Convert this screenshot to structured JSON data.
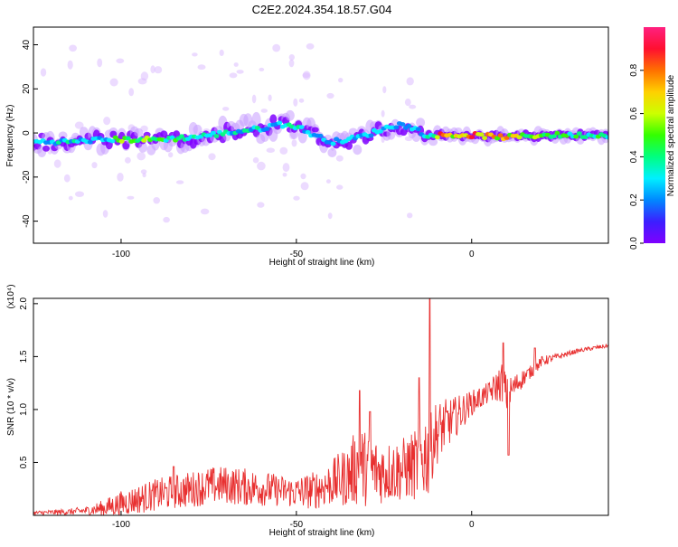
{
  "title": "C2E2.2024.354.18.57.G04",
  "chart_data": [
    {
      "type": "heatmap",
      "name": "spectrogram",
      "xlabel": "Height of straight line (km)",
      "ylabel": "Frequency (Hz)",
      "xlim": [
        -125,
        39
      ],
      "ylim": [
        -50,
        48
      ],
      "xticks": [
        -100,
        -50,
        0
      ],
      "xtick_labels": [
        "-100",
        "-50",
        "0"
      ],
      "yticks": [
        -40,
        -20,
        0,
        20,
        40
      ],
      "ytick_labels": [
        "-40",
        "-20",
        "0",
        "20",
        "40"
      ],
      "colorbar": {
        "label": "Normalized spectral amplitude",
        "range": [
          0,
          1
        ],
        "ticks": [
          0.0,
          0.2,
          0.4,
          0.6,
          0.8
        ],
        "tick_labels": [
          "0.0",
          "0.2",
          "0.4",
          "0.6",
          "0.8"
        ],
        "colormap": [
          "#7f00ff",
          "#3c1fff",
          "#0088ff",
          "#00f0ff",
          "#00ff80",
          "#33ff00",
          "#ccff00",
          "#ffd000",
          "#ff7000",
          "#ff1030",
          "#ff2080"
        ]
      },
      "ridge": {
        "x": [
          -125,
          -115,
          -105,
          -100,
          -90,
          -80,
          -70,
          -60,
          -55,
          -50,
          -45,
          -40,
          -35,
          -30,
          -25,
          -20,
          -15,
          -12,
          -10,
          0,
          10,
          20,
          30,
          39
        ],
        "y": [
          -4,
          -4,
          -3,
          -3,
          -3,
          -2,
          0,
          2,
          4,
          3,
          -1,
          -4,
          -3,
          -1,
          2,
          4,
          1,
          -2,
          -1,
          -1,
          -2,
          -1,
          -1,
          -1
        ],
        "amplitude": [
          0.3,
          0.35,
          0.35,
          0.6,
          0.5,
          0.4,
          0.35,
          0.35,
          0.3,
          0.45,
          0.25,
          0.25,
          0.3,
          0.3,
          0.3,
          0.3,
          0.3,
          0.45,
          0.85,
          0.9,
          0.7,
          0.6,
          0.45,
          0.4
        ]
      },
      "grid": false
    },
    {
      "type": "line",
      "name": "snr",
      "xlabel": "Height of straight line (km)",
      "ylabel": "SNR (10 * v/v)",
      "scale_label": "(x10⁴)",
      "xlim": [
        -125,
        39
      ],
      "ylim": [
        0,
        2.05
      ],
      "xticks": [
        -100,
        -50,
        0
      ],
      "xtick_labels": [
        "-100",
        "-50",
        "0"
      ],
      "yticks": [
        0.5,
        1.0,
        1.5,
        2.0
      ],
      "ytick_labels": [
        "0.5",
        "1.0",
        "1.5",
        "2.0"
      ],
      "color": "#e83030",
      "series": [
        {
          "x": [
            -125,
            -115,
            -110,
            -105,
            -100,
            -95,
            -90,
            -85,
            -80,
            -75,
            -70,
            -65,
            -60,
            -55,
            -50,
            -45,
            -40,
            -35,
            -32,
            -30,
            -25,
            -20,
            -15,
            -13,
            -12,
            -11,
            -10,
            -5,
            0,
            5,
            7,
            9,
            10,
            12,
            15,
            18,
            20,
            25,
            30,
            35,
            39
          ],
          "baseline": [
            0.02,
            0.03,
            0.04,
            0.06,
            0.1,
            0.14,
            0.18,
            0.2,
            0.23,
            0.26,
            0.27,
            0.25,
            0.24,
            0.22,
            0.2,
            0.22,
            0.28,
            0.35,
            0.45,
            0.4,
            0.38,
            0.4,
            0.45,
            0.55,
            0.5,
            0.7,
            0.75,
            0.9,
            1.05,
            1.15,
            1.2,
            1.25,
            1.1,
            1.2,
            1.3,
            1.38,
            1.45,
            1.5,
            1.55,
            1.58,
            1.6
          ],
          "noise": [
            0.02,
            0.03,
            0.04,
            0.08,
            0.12,
            0.14,
            0.15,
            0.17,
            0.17,
            0.18,
            0.18,
            0.18,
            0.17,
            0.15,
            0.15,
            0.18,
            0.22,
            0.3,
            0.4,
            0.35,
            0.3,
            0.3,
            0.35,
            0.45,
            0.35,
            0.35,
            0.3,
            0.2,
            0.12,
            0.1,
            0.15,
            0.2,
            0.18,
            0.12,
            0.08,
            0.05,
            0.05,
            0.03,
            0.02,
            0.02,
            0.02
          ],
          "peaks": [
            {
              "x": -85,
              "y": 0.46
            },
            {
              "x": -32,
              "y": 1.18
            },
            {
              "x": -29,
              "y": 0.98
            },
            {
              "x": -12,
              "y": 2.05
            },
            {
              "x": -15,
              "y": 1.3
            },
            {
              "x": 9,
              "y": 1.63
            },
            {
              "x": 10.5,
              "y": 0.57
            },
            {
              "x": 18,
              "y": 1.58
            }
          ]
        }
      ],
      "grid": false
    }
  ]
}
